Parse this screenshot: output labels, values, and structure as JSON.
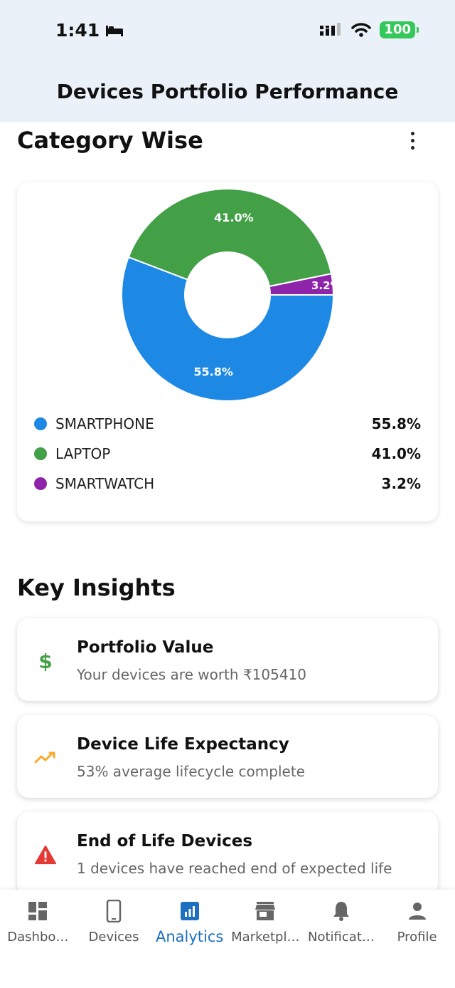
{
  "status_bar": {
    "time": "1:41",
    "battery": "100"
  },
  "header": {
    "title": "Devices Portfolio Performance"
  },
  "category_section": {
    "title": "Category Wise"
  },
  "chart_data": {
    "type": "pie",
    "categories": [
      "SMARTPHONE",
      "LAPTOP",
      "SMARTWATCH"
    ],
    "values": [
      55.8,
      41.0,
      3.2
    ],
    "value_labels": [
      "55.8%",
      "41.0%",
      "3.2%"
    ],
    "colors": [
      "#1e88e5",
      "#43a047",
      "#8e24aa"
    ],
    "donut": true
  },
  "legend": [
    {
      "name": "SMARTPHONE",
      "value": "55.8%",
      "color": "#1e88e5"
    },
    {
      "name": "LAPTOP",
      "value": "41.0%",
      "color": "#43a047"
    },
    {
      "name": "SMARTWATCH",
      "value": "3.2%",
      "color": "#8e24aa"
    }
  ],
  "insights_section": {
    "title": "Key Insights"
  },
  "insights": [
    {
      "title": "Portfolio Value",
      "subtitle": "Your devices are worth ₹105410",
      "icon": "dollar-icon",
      "color": "#43a047"
    },
    {
      "title": "Device Life Expectancy",
      "subtitle": "53% average lifecycle complete",
      "icon": "trending-icon",
      "color": "#f9a825"
    },
    {
      "title": "End of Life Devices",
      "subtitle": "1 devices have reached end of expected life",
      "icon": "warning-icon",
      "color": "#e53935"
    }
  ],
  "nav": [
    {
      "label": "Dashbo…",
      "icon": "dashboard-icon"
    },
    {
      "label": "Devices",
      "icon": "phone-icon"
    },
    {
      "label": "Analytics",
      "icon": "analytics-icon",
      "active": true
    },
    {
      "label": "Marketpl…",
      "icon": "store-icon"
    },
    {
      "label": "Notificat…",
      "icon": "bell-icon"
    },
    {
      "label": "Profile",
      "icon": "person-icon"
    }
  ],
  "accent_color": "#1e6fbf"
}
